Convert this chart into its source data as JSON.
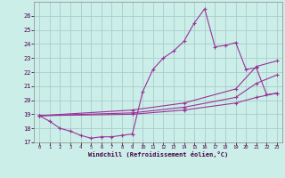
{
  "title": "",
  "xlabel": "Windchill (Refroidissement éolien,°C)",
  "bg_color": "#cceee8",
  "grid_color": "#aacccc",
  "line_color": "#993399",
  "ylim": [
    17,
    27
  ],
  "xlim": [
    -0.5,
    23.5
  ],
  "yticks": [
    17,
    18,
    19,
    20,
    21,
    22,
    23,
    24,
    25,
    26
  ],
  "xticks": [
    0,
    1,
    2,
    3,
    4,
    5,
    6,
    7,
    8,
    9,
    10,
    11,
    12,
    13,
    14,
    15,
    16,
    17,
    18,
    19,
    20,
    21,
    22,
    23
  ],
  "line1_x": [
    0,
    1,
    2,
    3,
    4,
    5,
    6,
    7,
    8,
    9,
    10,
    11,
    12,
    13,
    14,
    15,
    16,
    17,
    18,
    19,
    20,
    21,
    22,
    23
  ],
  "line1_y": [
    18.9,
    18.5,
    18.0,
    17.8,
    17.5,
    17.3,
    17.4,
    17.4,
    17.5,
    17.6,
    20.6,
    22.2,
    23.0,
    23.5,
    24.2,
    25.5,
    26.5,
    23.8,
    23.9,
    24.1,
    22.2,
    22.3,
    20.4,
    20.5
  ],
  "line2_x": [
    0,
    9,
    14,
    19,
    21,
    23
  ],
  "line2_y": [
    18.9,
    19.3,
    19.8,
    20.8,
    22.4,
    22.8
  ],
  "line3_x": [
    0,
    9,
    14,
    19,
    21,
    23
  ],
  "line3_y": [
    18.9,
    19.0,
    19.3,
    19.8,
    20.2,
    20.5
  ],
  "line4_x": [
    0,
    9,
    14,
    19,
    21,
    23
  ],
  "line4_y": [
    18.9,
    19.1,
    19.5,
    20.2,
    21.2,
    21.8
  ]
}
